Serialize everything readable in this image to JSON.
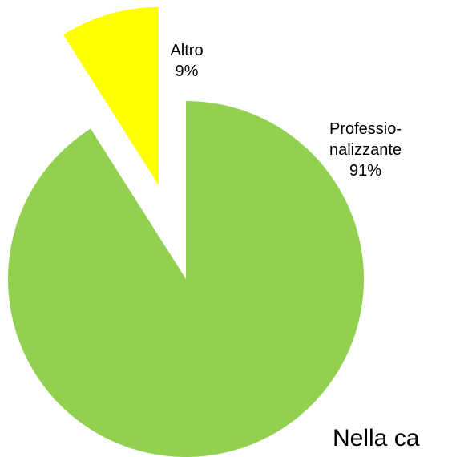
{
  "chart_data": {
    "type": "pie",
    "categories": [
      "Professio-nalizzante",
      "Altro"
    ],
    "values": [
      91,
      9
    ],
    "value_labels": [
      "91%",
      "9%"
    ],
    "colors": [
      "#92d050",
      "#ffff00"
    ],
    "annotation": "Nella ca"
  }
}
